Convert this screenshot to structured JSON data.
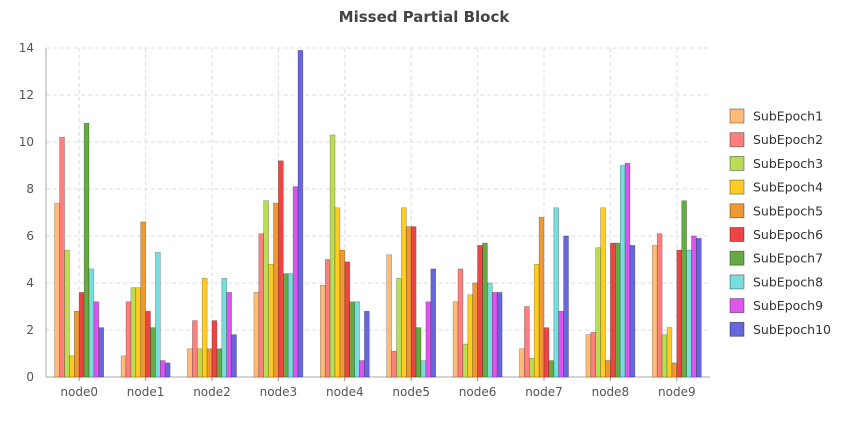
{
  "chart_data": {
    "type": "bar",
    "title": "Missed Partial Block",
    "xlabel": "",
    "ylabel": "",
    "ylim": [
      0,
      14
    ],
    "yticks": [
      0,
      2,
      4,
      6,
      8,
      10,
      12,
      14
    ],
    "grid": true,
    "legend_position": "right",
    "categories": [
      "node0",
      "node1",
      "node2",
      "node3",
      "node4",
      "node5",
      "node6",
      "node7",
      "node8",
      "node9"
    ],
    "series": [
      {
        "name": "SubEpoch1",
        "color": "#ffbb77",
        "values": [
          7.4,
          0.9,
          1.2,
          3.6,
          3.9,
          5.2,
          3.2,
          1.2,
          1.8,
          5.6
        ]
      },
      {
        "name": "SubEpoch2",
        "color": "#ff7f7f",
        "values": [
          10.2,
          3.2,
          2.4,
          6.1,
          5.0,
          1.1,
          4.6,
          3.0,
          1.9,
          6.1
        ]
      },
      {
        "name": "SubEpoch3",
        "color": "#bbdd55",
        "values": [
          5.4,
          3.8,
          1.2,
          7.5,
          10.3,
          4.2,
          1.4,
          0.8,
          5.5,
          1.8
        ]
      },
      {
        "name": "SubEpoch4",
        "color": "#ffcc22",
        "values": [
          0.9,
          3.8,
          4.2,
          4.8,
          7.2,
          7.2,
          3.5,
          4.8,
          7.2,
          2.1
        ]
      },
      {
        "name": "SubEpoch5",
        "color": "#ee9933",
        "values": [
          2.8,
          6.6,
          1.2,
          7.4,
          5.4,
          6.4,
          4.0,
          6.8,
          0.7,
          0.6
        ]
      },
      {
        "name": "SubEpoch6",
        "color": "#ee4444",
        "values": [
          3.6,
          2.8,
          2.4,
          9.2,
          4.9,
          6.4,
          5.6,
          2.1,
          5.7,
          5.4
        ]
      },
      {
        "name": "SubEpoch7",
        "color": "#66aa44",
        "values": [
          10.8,
          2.1,
          1.2,
          4.4,
          3.2,
          2.1,
          5.7,
          0.7,
          5.7,
          7.5
        ]
      },
      {
        "name": "SubEpoch8",
        "color": "#77dddd",
        "values": [
          4.6,
          5.3,
          4.2,
          4.4,
          3.2,
          0.7,
          4.0,
          7.2,
          9.0,
          5.4
        ]
      },
      {
        "name": "SubEpoch9",
        "color": "#dd55ee",
        "values": [
          3.2,
          0.7,
          3.6,
          8.1,
          0.7,
          3.2,
          3.6,
          2.8,
          9.1,
          6.0
        ]
      },
      {
        "name": "SubEpoch10",
        "color": "#6666dd",
        "values": [
          2.1,
          0.6,
          1.8,
          13.9,
          2.8,
          4.6,
          3.6,
          6.0,
          5.6,
          5.9
        ]
      }
    ]
  }
}
